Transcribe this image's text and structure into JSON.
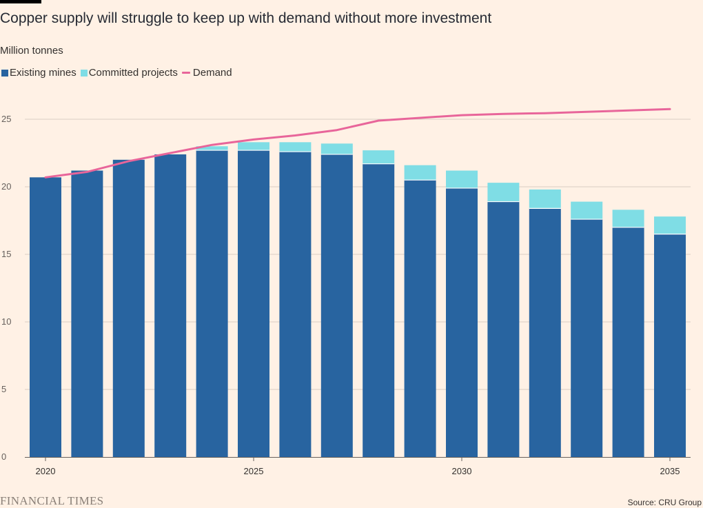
{
  "header": {
    "title": "Copper supply will struggle to keep up with demand without more investment",
    "subtitle": "Million tonnes"
  },
  "legend": {
    "existing": "Existing mines",
    "committed": "Committed projects",
    "demand": "Demand"
  },
  "footer": {
    "brand": "FINANCIAL TIMES",
    "source": "Source: CRU Group"
  },
  "colors": {
    "existing": "#2864a0",
    "committed": "#7fdde5",
    "demand": "#e8659a",
    "grid": "#d9cdc3",
    "background": "#fff1e5"
  },
  "chart_data": {
    "type": "bar",
    "stacked": true,
    "categories": [
      "2020",
      "2021",
      "2022",
      "2023",
      "2024",
      "2025",
      "2026",
      "2027",
      "2028",
      "2029",
      "2030",
      "2031",
      "2032",
      "2033",
      "2034",
      "2035"
    ],
    "x_tick_labels": [
      "2020",
      "2025",
      "2030",
      "2035"
    ],
    "series": [
      {
        "name": "Existing mines",
        "type": "bar",
        "values": [
          20.7,
          21.2,
          22.0,
          22.4,
          22.7,
          22.7,
          22.6,
          22.4,
          21.7,
          20.5,
          19.9,
          18.9,
          18.4,
          17.6,
          17.0,
          16.5
        ]
      },
      {
        "name": "Committed projects",
        "type": "bar",
        "values": [
          0,
          0,
          0,
          0,
          0.3,
          0.6,
          0.7,
          0.8,
          1.0,
          1.1,
          1.3,
          1.4,
          1.4,
          1.3,
          1.3,
          1.3
        ]
      },
      {
        "name": "Demand",
        "type": "line",
        "values": [
          20.7,
          21.1,
          21.9,
          22.5,
          23.1,
          23.5,
          23.8,
          24.2,
          24.9,
          25.1,
          25.3,
          25.4,
          25.45,
          25.55,
          25.65,
          25.75
        ]
      }
    ],
    "y_ticks": [
      0,
      5,
      10,
      15,
      20,
      25
    ],
    "ylim": [
      0,
      26
    ],
    "grid": true,
    "legend_position": "top-left"
  }
}
